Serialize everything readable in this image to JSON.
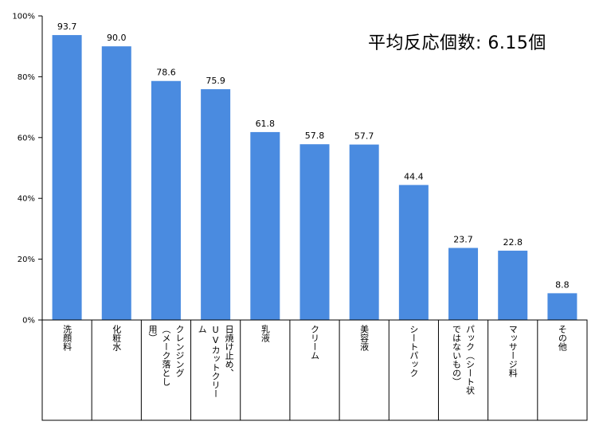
{
  "annotation": "平均反応個数: 6.15個",
  "chart_data": {
    "type": "bar",
    "categories": [
      [
        "洗顔料"
      ],
      [
        "化粧水"
      ],
      [
        "クレンジング",
        "（メーク落とし",
        "用）"
      ],
      [
        "日焼け止め、",
        "UVカットクリー",
        "ム"
      ],
      [
        "乳液"
      ],
      [
        "クリーム"
      ],
      [
        "美容液"
      ],
      [
        "シートパック"
      ],
      [
        "パック（シート状",
        "ではないもの）"
      ],
      [
        "マッサージ料"
      ],
      [
        "その他"
      ]
    ],
    "values": [
      93.7,
      90.0,
      78.6,
      75.9,
      61.8,
      57.8,
      57.7,
      44.4,
      23.7,
      22.8,
      8.8
    ],
    "value_labels": [
      "93.7",
      "90.0",
      "78.6",
      "75.9",
      "61.8",
      "57.8",
      "57.7",
      "44.4",
      "23.7",
      "22.8",
      "8.8"
    ],
    "yticks": [
      "0%",
      "20%",
      "40%",
      "60%",
      "80%",
      "100%"
    ],
    "ylim": [
      0,
      100
    ],
    "grid": false,
    "bar_color": "#4a8be0",
    "axis_color": "#000000"
  }
}
